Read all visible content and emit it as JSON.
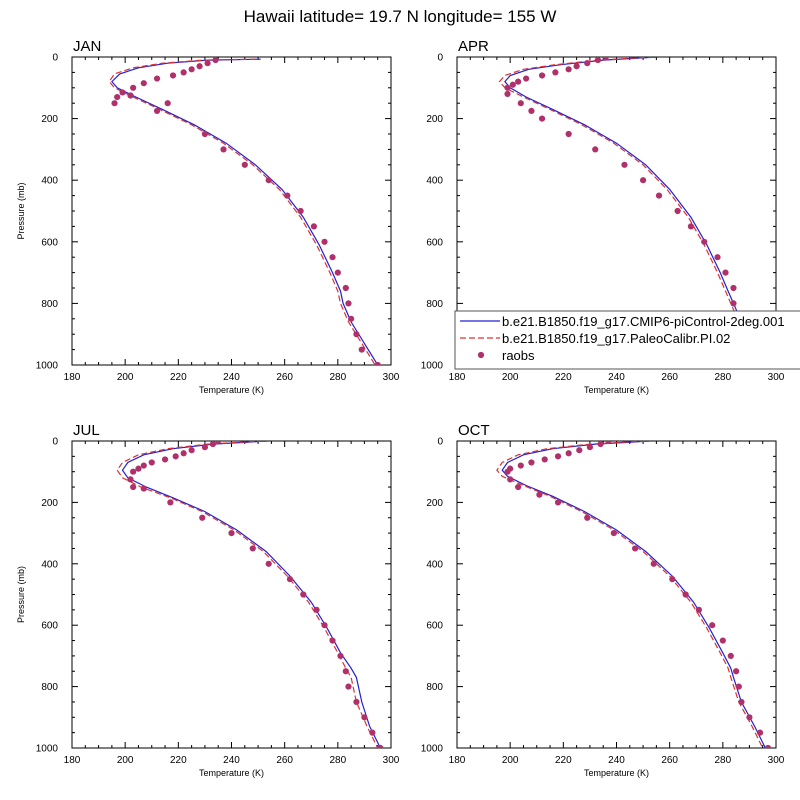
{
  "figure": {
    "title": "Hawaii  latitude= 19.7 N longitude= 155 W"
  },
  "legend": {
    "entries": [
      {
        "label": "b.e21.B1850.f19_g17.CMIP6-piControl-2deg.001",
        "style": "solid",
        "color": "#2020d8"
      },
      {
        "label": "b.e21.B1850.f19_g17.PaleoCalibr.PI.02",
        "style": "dashed",
        "color": "#e03030"
      },
      {
        "label": "raobs",
        "style": "marker",
        "color": "#b0306a"
      }
    ]
  },
  "chart_data": [
    {
      "type": "line",
      "title": "JAN",
      "xlabel": "Temperature (K)",
      "ylabel": "Pressure (mb)",
      "xlim": [
        180,
        300
      ],
      "ylim": [
        1000,
        0
      ],
      "x_ticks": [
        180,
        200,
        220,
        240,
        260,
        280,
        300
      ],
      "y_ticks": [
        0,
        200,
        400,
        600,
        800,
        1000
      ],
      "series": [
        {
          "name": "b.e21.B1850.f19_g17.CMIP6-piControl-2deg.001",
          "style": "solid",
          "color": "#2020d8",
          "x": [
            251,
            231,
            216,
            205,
            198,
            195,
            197,
            204,
            214,
            226,
            238,
            249,
            259,
            267,
            273,
            278,
            281,
            282,
            285,
            290,
            295
          ],
          "y": [
            7,
            10,
            20,
            35,
            55,
            80,
            100,
            130,
            170,
            220,
            280,
            350,
            430,
            520,
            610,
            700,
            760,
            800,
            860,
            930,
            1000
          ]
        },
        {
          "name": "b.e21.B1850.f19_g17.PaleoCalibr.PI.02",
          "style": "dashed",
          "color": "#e03030",
          "x": [
            249,
            229,
            214,
            203,
            196,
            194,
            196,
            203,
            213,
            225,
            237,
            248,
            258,
            266,
            272,
            277,
            280,
            281,
            284,
            289,
            294
          ],
          "y": [
            7,
            10,
            20,
            35,
            55,
            80,
            100,
            130,
            170,
            220,
            280,
            350,
            430,
            520,
            610,
            700,
            760,
            800,
            860,
            930,
            1000
          ]
        },
        {
          "name": "raobs",
          "style": "marker",
          "color": "#b0306a",
          "x": [
            234,
            231,
            228,
            225,
            222,
            218,
            212,
            207,
            203,
            199,
            197,
            196,
            202,
            212,
            216,
            230,
            237,
            245,
            254,
            261,
            266,
            271,
            275,
            278,
            280,
            283,
            284,
            285,
            287,
            289,
            295
          ],
          "y": [
            10,
            20,
            30,
            40,
            50,
            60,
            70,
            85,
            100,
            115,
            130,
            150,
            125,
            175,
            150,
            250,
            300,
            350,
            400,
            450,
            500,
            550,
            600,
            650,
            700,
            750,
            800,
            850,
            900,
            950,
            1000
          ]
        }
      ]
    },
    {
      "type": "line",
      "title": "APR",
      "xlabel": "Temperature (K)",
      "ylabel": "",
      "xlim": [
        180,
        300
      ],
      "ylim": [
        1000,
        0
      ],
      "x_ticks": [
        180,
        200,
        220,
        240,
        260,
        280,
        300
      ],
      "y_ticks": [
        0,
        200,
        400,
        600,
        800,
        1000
      ],
      "series": [
        {
          "name": "b.e21.B1850.f19_g17.CMIP6-piControl-2deg.001",
          "style": "solid",
          "color": "#2020d8",
          "x": [
            256,
            235,
            219,
            207,
            200,
            198,
            200,
            206,
            216,
            228,
            240,
            251,
            260,
            268,
            274,
            279,
            282,
            284,
            287,
            291,
            295
          ],
          "y": [
            0,
            10,
            25,
            40,
            60,
            80,
            100,
            130,
            170,
            220,
            280,
            350,
            430,
            520,
            610,
            700,
            760,
            800,
            860,
            930,
            1000
          ]
        },
        {
          "name": "b.e21.B1850.f19_g17.PaleoCalibr.PI.02",
          "style": "dashed",
          "color": "#e03030",
          "x": [
            254,
            233,
            217,
            205,
            198,
            196,
            198,
            205,
            215,
            227,
            239,
            250,
            259,
            267,
            273,
            278,
            281,
            283,
            286,
            290,
            294
          ],
          "y": [
            0,
            10,
            25,
            40,
            60,
            80,
            100,
            130,
            170,
            220,
            280,
            350,
            430,
            520,
            610,
            700,
            760,
            800,
            860,
            930,
            1000
          ]
        },
        {
          "name": "raobs",
          "style": "marker",
          "color": "#b0306a",
          "x": [
            236,
            233,
            229,
            225,
            222,
            217,
            212,
            206,
            203,
            201,
            199,
            199,
            204,
            208,
            212,
            222,
            232,
            243,
            250,
            256,
            263,
            268,
            273,
            278,
            281,
            284,
            284,
            285,
            288,
            292,
            295
          ],
          "y": [
            0,
            10,
            20,
            30,
            40,
            50,
            60,
            70,
            80,
            90,
            100,
            120,
            150,
            175,
            200,
            250,
            300,
            350,
            400,
            450,
            500,
            550,
            600,
            650,
            700,
            750,
            800,
            850,
            900,
            950,
            1000
          ]
        }
      ]
    },
    {
      "type": "line",
      "title": "JUL",
      "xlabel": "Temperature (K)",
      "ylabel": "Pressure (mb)",
      "xlim": [
        180,
        300
      ],
      "ylim": [
        1000,
        0
      ],
      "x_ticks": [
        180,
        200,
        220,
        240,
        260,
        280,
        300
      ],
      "y_ticks": [
        0,
        200,
        400,
        600,
        800,
        1000
      ],
      "series": [
        {
          "name": "b.e21.B1850.f19_g17.CMIP6-piControl-2deg.001",
          "style": "solid",
          "color": "#2020d8",
          "x": [
            254,
            233,
            218,
            207,
            201,
            199,
            201,
            208,
            218,
            230,
            242,
            253,
            262,
            270,
            276,
            281,
            285,
            287,
            289,
            292,
            296
          ],
          "y": [
            0,
            10,
            25,
            45,
            70,
            95,
            120,
            150,
            185,
            230,
            290,
            360,
            440,
            525,
            610,
            690,
            740,
            770,
            850,
            930,
            1000
          ]
        },
        {
          "name": "b.e21.B1850.f19_g17.PaleoCalibr.PI.02",
          "style": "dashed",
          "color": "#e03030",
          "x": [
            252,
            231,
            216,
            205,
            199,
            197,
            199,
            206,
            217,
            229,
            241,
            252,
            261,
            269,
            275,
            280,
            283,
            285,
            287,
            291,
            295
          ],
          "y": [
            0,
            10,
            25,
            45,
            70,
            95,
            120,
            150,
            185,
            230,
            290,
            360,
            440,
            525,
            610,
            690,
            740,
            770,
            850,
            930,
            1000
          ]
        },
        {
          "name": "raobs",
          "style": "marker",
          "color": "#b0306a",
          "x": [
            235,
            233,
            230,
            225,
            222,
            219,
            215,
            210,
            207,
            205,
            203,
            202,
            203,
            207,
            217,
            229,
            240,
            248,
            254,
            262,
            267,
            272,
            275,
            278,
            281,
            283,
            284,
            287,
            290,
            293,
            296
          ],
          "y": [
            0,
            10,
            20,
            30,
            40,
            50,
            60,
            70,
            80,
            90,
            100,
            125,
            150,
            155,
            200,
            250,
            300,
            350,
            400,
            450,
            500,
            550,
            600,
            650,
            700,
            750,
            800,
            850,
            900,
            950,
            1000
          ]
        }
      ]
    },
    {
      "type": "line",
      "title": "OCT",
      "xlabel": "Temperature (K)",
      "ylabel": "",
      "xlim": [
        180,
        300
      ],
      "ylim": [
        1000,
        0
      ],
      "x_ticks": [
        180,
        200,
        220,
        240,
        260,
        280,
        300
      ],
      "y_ticks": [
        0,
        200,
        400,
        600,
        800,
        1000
      ],
      "series": [
        {
          "name": "b.e21.B1850.f19_g17.CMIP6-piControl-2deg.001",
          "style": "solid",
          "color": "#2020d8",
          "x": [
            253,
            232,
            216,
            205,
            199,
            197,
            199,
            206,
            216,
            228,
            240,
            251,
            261,
            269,
            275,
            280,
            283,
            284,
            287,
            292,
            296
          ],
          "y": [
            0,
            10,
            25,
            45,
            70,
            95,
            115,
            145,
            180,
            230,
            290,
            360,
            440,
            525,
            610,
            690,
            740,
            770,
            850,
            930,
            1000
          ]
        },
        {
          "name": "b.e21.B1850.f19_g17.PaleoCalibr.PI.02",
          "style": "dashed",
          "color": "#e03030",
          "x": [
            251,
            230,
            214,
            203,
            197,
            195,
            197,
            205,
            215,
            227,
            239,
            250,
            260,
            268,
            274,
            279,
            282,
            283,
            286,
            291,
            295
          ],
          "y": [
            0,
            10,
            25,
            45,
            70,
            95,
            115,
            145,
            180,
            230,
            290,
            360,
            440,
            525,
            610,
            690,
            740,
            770,
            850,
            930,
            1000
          ]
        },
        {
          "name": "raobs",
          "style": "marker",
          "color": "#b0306a",
          "x": [
            237,
            234,
            230,
            226,
            222,
            218,
            213,
            208,
            204,
            200,
            199,
            200,
            203,
            211,
            218,
            229,
            239,
            247,
            254,
            261,
            266,
            271,
            276,
            280,
            283,
            285,
            286,
            287,
            290,
            294,
            297
          ],
          "y": [
            0,
            10,
            20,
            30,
            40,
            50,
            60,
            70,
            80,
            90,
            100,
            125,
            150,
            175,
            200,
            250,
            300,
            350,
            400,
            450,
            500,
            550,
            600,
            650,
            700,
            750,
            800,
            850,
            900,
            950,
            1000
          ]
        }
      ]
    }
  ]
}
